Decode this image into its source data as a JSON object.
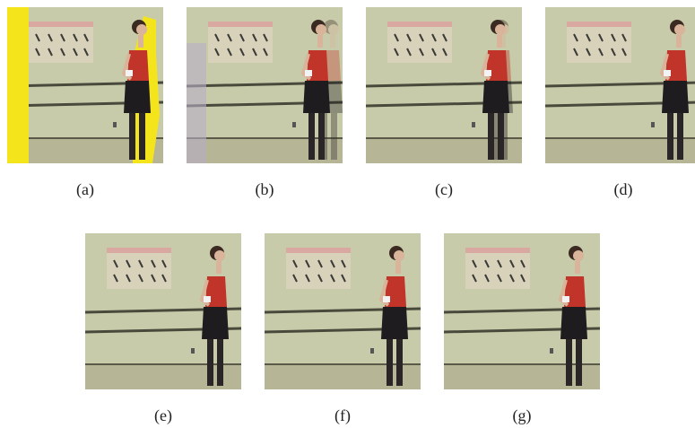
{
  "figure": {
    "panels": [
      {
        "label": "(a)"
      },
      {
        "label": "(b)"
      },
      {
        "label": "(c)"
      },
      {
        "label": "(d)"
      },
      {
        "label": "(e)"
      },
      {
        "label": "(f)"
      },
      {
        "label": "(g)"
      }
    ]
  }
}
